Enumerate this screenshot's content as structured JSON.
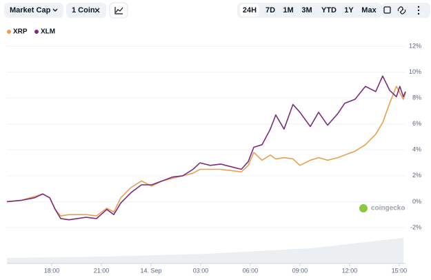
{
  "toolbar": {
    "metric": "Market Cap",
    "coins": "1 Coin",
    "ranges": [
      "24H",
      "7D",
      "1M",
      "3M",
      "YTD",
      "1Y",
      "Max"
    ],
    "selected_range": 0
  },
  "watermark": "coingecko",
  "chart_data": {
    "type": "line",
    "x": [
      15.29,
      16.13,
      16.96,
      17.46,
      17.88,
      18.21,
      18.54,
      19.04,
      19.54,
      20.08,
      20.71,
      21.33,
      21.75,
      22.17,
      22.79,
      23.42,
      24.04,
      24.67,
      25.29,
      25.92,
      26.54,
      26.96,
      27.58,
      28.21,
      28.83,
      29.46,
      29.88,
      30.21,
      30.71,
      31.21,
      31.54,
      32.04,
      32.58,
      33.0,
      33.63,
      34.13,
      34.67,
      35.29,
      35.71,
      36.33,
      36.96,
      37.58,
      38.0,
      38.42,
      38.83,
      39.04,
      39.25,
      39.38
    ],
    "series": [
      {
        "name": "XRP",
        "color": "#e8a04e",
        "values": [
          0,
          0.1,
          0.4,
          0.6,
          0.3,
          -0.6,
          -1.1,
          -1.0,
          -1.0,
          -1.0,
          -1.1,
          -0.5,
          -0.8,
          0.3,
          1.1,
          1.6,
          1.2,
          1.6,
          1.8,
          2.0,
          2.2,
          2.5,
          2.5,
          2.5,
          2.4,
          2.3,
          2.8,
          3.8,
          3.2,
          3.6,
          3.3,
          3.4,
          3.3,
          2.8,
          3.2,
          3.4,
          3.2,
          3.4,
          3.6,
          3.9,
          4.4,
          5.2,
          6.1,
          7.6,
          8.9,
          8.4,
          7.9,
          8.4
        ]
      },
      {
        "name": "XLM",
        "color": "#7b2a7e",
        "values": [
          0,
          0.1,
          0.3,
          0.6,
          0.3,
          -0.6,
          -1.3,
          -1.4,
          -1.3,
          -1.2,
          -1.3,
          -0.6,
          -1.0,
          -0.1,
          0.7,
          1.3,
          1.3,
          1.6,
          1.9,
          2.0,
          2.5,
          3.0,
          2.8,
          2.9,
          2.7,
          2.5,
          3.1,
          4.2,
          4.4,
          5.6,
          6.7,
          5.6,
          7.5,
          6.9,
          5.8,
          6.9,
          5.9,
          6.8,
          7.6,
          7.9,
          8.9,
          8.5,
          9.7,
          8.6,
          8.1,
          8.9,
          8.1,
          8.5
        ]
      }
    ],
    "xlim": [
      15.29,
      39.38
    ],
    "xticks": [
      {
        "value": 18,
        "label": "18:00"
      },
      {
        "value": 21,
        "label": "21:00"
      },
      {
        "value": 24,
        "label": "14. Sep"
      },
      {
        "value": 27,
        "label": "03:00"
      },
      {
        "value": 30,
        "label": "06:00"
      },
      {
        "value": 33,
        "label": "09:00"
      },
      {
        "value": 36,
        "label": "12:00"
      },
      {
        "value": 39,
        "label": "15:00"
      }
    ],
    "ylim": [
      -2,
      12
    ],
    "yticks": [
      {
        "value": -2,
        "label": "-2%"
      },
      {
        "value": 0,
        "label": "0%"
      },
      {
        "value": 2,
        "label": "2%"
      },
      {
        "value": 4,
        "label": "4%"
      },
      {
        "value": 6,
        "label": "6%"
      },
      {
        "value": 8,
        "label": "8%"
      },
      {
        "value": 10,
        "label": "10%"
      },
      {
        "value": 12,
        "label": "12%"
      }
    ],
    "grid": true
  }
}
